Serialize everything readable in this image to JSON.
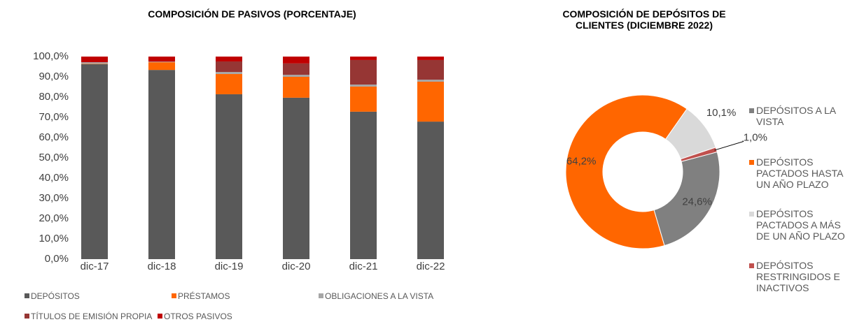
{
  "chart_data": [
    {
      "type": "stacked_bar",
      "title": "COMPOSICIÓN DE PASIVOS  (PORCENTAJE)",
      "categories": [
        "dic-17",
        "dic-18",
        "dic-19",
        "dic-20",
        "dic-21",
        "dic-22"
      ],
      "series": [
        {
          "name": "DEPÓSITOS",
          "color": "#595959",
          "values": [
            96.3,
            93.4,
            81.4,
            79.7,
            72.8,
            67.9
          ]
        },
        {
          "name": "PRÉSTAMOS",
          "color": "#FF6600",
          "values": [
            0.2,
            3.8,
            10.0,
            10.3,
            12.4,
            19.7
          ]
        },
        {
          "name": "OBLIGACIONES A LA VISTA",
          "color": "#A6A6A6",
          "values": [
            0.7,
            0.3,
            1.0,
            1.0,
            1.0,
            1.0
          ]
        },
        {
          "name": "TÍTULOS DE EMISIÓN PROPIA",
          "color": "#963634",
          "values": [
            0,
            0,
            5.2,
            5.6,
            12.1,
            9.7
          ]
        },
        {
          "name": "OTROS PASIVOS",
          "color": "#C00000",
          "values": [
            2.8,
            2.5,
            2.4,
            3.4,
            1.7,
            1.7
          ]
        }
      ],
      "ylim": [
        0,
        100
      ],
      "yticks": [
        {
          "value": 0,
          "label": "0,0%"
        },
        {
          "value": 10,
          "label": "10,0%"
        },
        {
          "value": 20,
          "label": "20,0%"
        },
        {
          "value": 30,
          "label": "30,0%"
        },
        {
          "value": 40,
          "label": "40,0%"
        },
        {
          "value": 50,
          "label": "50,0%"
        },
        {
          "value": 60,
          "label": "60,0%"
        },
        {
          "value": 70,
          "label": "70,0%"
        },
        {
          "value": 80,
          "label": "80,0%"
        },
        {
          "value": 90,
          "label": "90,0%"
        },
        {
          "value": 100,
          "label": "100,0%"
        }
      ],
      "grid": false,
      "legend": "bottom"
    },
    {
      "type": "donut",
      "title": "COMPOSICIÓN DE DEPÓSITOS DE CLIENTES (DICIEMBRE 2022)",
      "categories": [
        "DEPÓSITOS A LA VISTA",
        "DEPÓSITOS PACTADOS HASTA UN AÑO PLAZO",
        "DEPÓSITOS PACTADOS A MÁS DE UN AÑO PLAZO",
        "DEPÓSITOS RESTRINGIDOS E INACTIVOS"
      ],
      "values": [
        24.6,
        64.2,
        10.1,
        1.0
      ],
      "value_labels": [
        "24,6%",
        "64,2%",
        "10,1%",
        "1,0%"
      ],
      "colors": [
        "#808080",
        "#FF6600",
        "#D9D9D9",
        "#C0504D"
      ],
      "legend": "right"
    }
  ]
}
